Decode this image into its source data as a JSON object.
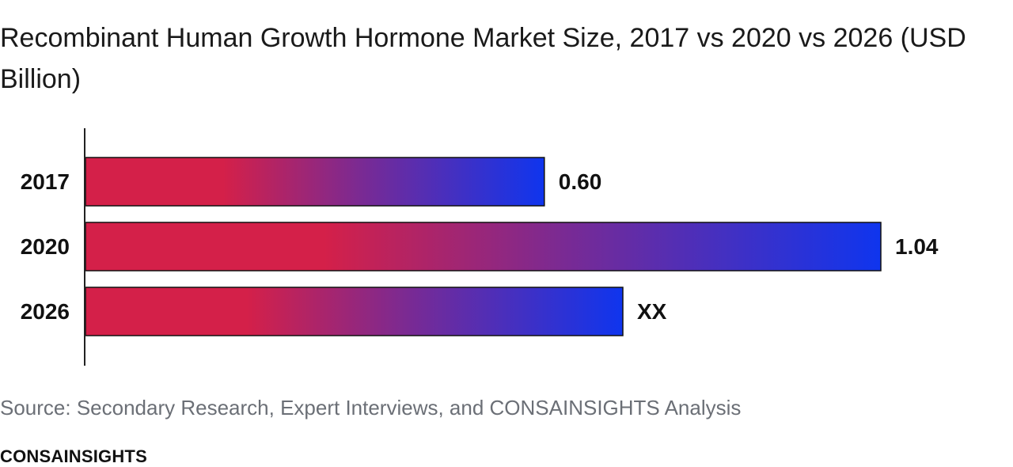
{
  "chart_data": {
    "type": "bar",
    "orientation": "horizontal",
    "title": "Recombinant Human Growth Hormone Market Size, 2017 vs 2020 vs 2026 (USD Billion)",
    "categories": [
      "2017",
      "2020",
      "2026"
    ],
    "values": [
      0.6,
      1.04,
      null
    ],
    "data_labels": [
      "0.60",
      "1.04",
      "XX"
    ],
    "bar_gradient": [
      "#d42049",
      "#0f35ee"
    ],
    "xlim": [
      0,
      1.1
    ],
    "grid": false,
    "legend": "none"
  },
  "footer": {
    "source": "Source: Secondary Research, Expert Interviews, and CONSAINSIGHTS Analysis",
    "brand": "CONSAINSIGHTS"
  }
}
